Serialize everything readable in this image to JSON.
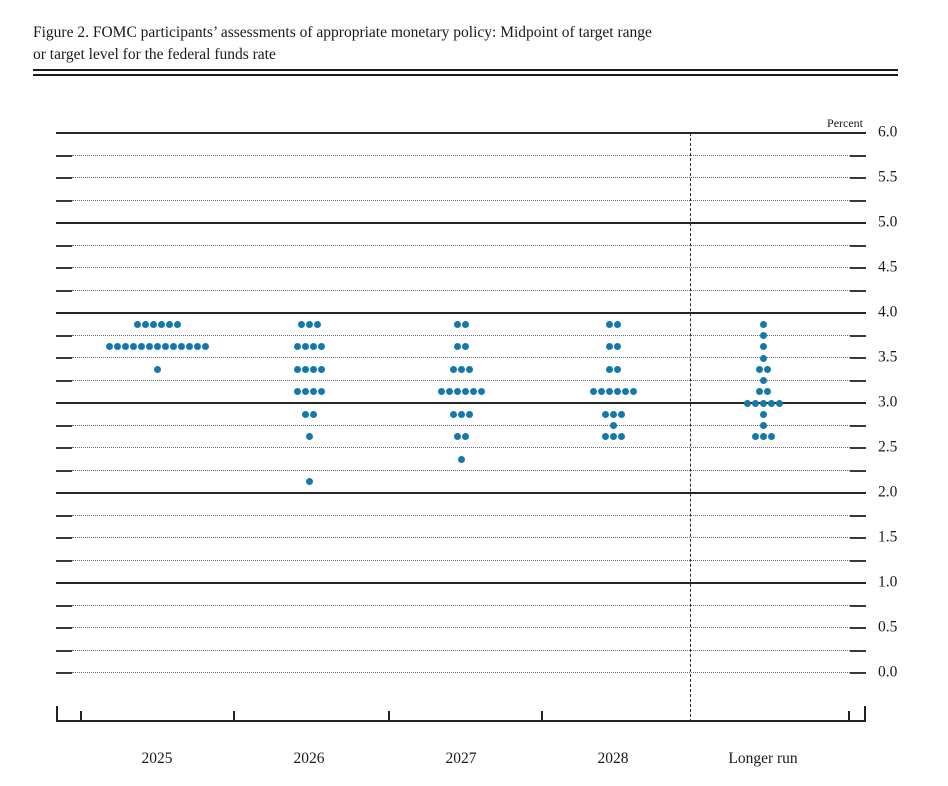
{
  "header": {
    "line1": "Figure 2. FOMC participants’ assessments of appropriate monetary policy: Midpoint of target range",
    "line2": "or target level for the federal funds rate"
  },
  "chart_data": {
    "type": "scatter",
    "title": "FOMC participants’ assessments of appropriate monetary policy: Midpoint of target range or target level for the federal funds rate",
    "percent_label": "Percent",
    "ylabel": "Percent",
    "ylim": [
      0.0,
      6.0
    ],
    "y_tick_step": 0.25,
    "y_label_step": 0.5,
    "y_axis_labels": [
      "6.0",
      "5.5",
      "5.0",
      "4.5",
      "4.0",
      "3.5",
      "3.0",
      "2.5",
      "2.0",
      "1.5",
      "1.0",
      "0.5",
      "0.0"
    ],
    "solid_gridlines": [
      6.0,
      5.0,
      4.0,
      3.0,
      2.0,
      1.0
    ],
    "grid": "dotted-quarters",
    "legend": "none",
    "dot_color": "#1578aa",
    "categories": [
      "2025",
      "2026",
      "2027",
      "2028",
      "Longer run"
    ],
    "series": [
      {
        "name": "2025",
        "dots": [
          {
            "rate": 3.875,
            "count": 6
          },
          {
            "rate": 3.625,
            "count": 13
          },
          {
            "rate": 3.375,
            "count": 1
          }
        ]
      },
      {
        "name": "2026",
        "dots": [
          {
            "rate": 3.875,
            "count": 3
          },
          {
            "rate": 3.625,
            "count": 4
          },
          {
            "rate": 3.375,
            "count": 4
          },
          {
            "rate": 3.125,
            "count": 4
          },
          {
            "rate": 2.875,
            "count": 2
          },
          {
            "rate": 2.625,
            "count": 1
          },
          {
            "rate": 2.125,
            "count": 1
          }
        ]
      },
      {
        "name": "2027",
        "dots": [
          {
            "rate": 3.875,
            "count": 2
          },
          {
            "rate": 3.625,
            "count": 2
          },
          {
            "rate": 3.375,
            "count": 3
          },
          {
            "rate": 3.125,
            "count": 6
          },
          {
            "rate": 2.875,
            "count": 3
          },
          {
            "rate": 2.625,
            "count": 2
          },
          {
            "rate": 2.375,
            "count": 1
          }
        ]
      },
      {
        "name": "2028",
        "dots": [
          {
            "rate": 3.875,
            "count": 2
          },
          {
            "rate": 3.625,
            "count": 2
          },
          {
            "rate": 3.375,
            "count": 2
          },
          {
            "rate": 3.125,
            "count": 6
          },
          {
            "rate": 2.875,
            "count": 3
          },
          {
            "rate": 2.75,
            "count": 1
          },
          {
            "rate": 2.625,
            "count": 3
          }
        ]
      },
      {
        "name": "Longer run",
        "dots": [
          {
            "rate": 3.875,
            "count": 1
          },
          {
            "rate": 3.75,
            "count": 1
          },
          {
            "rate": 3.625,
            "count": 1
          },
          {
            "rate": 3.5,
            "count": 1
          },
          {
            "rate": 3.375,
            "count": 2
          },
          {
            "rate": 3.25,
            "count": 1
          },
          {
            "rate": 3.125,
            "count": 2
          },
          {
            "rate": 3.0,
            "count": 5
          },
          {
            "rate": 2.875,
            "count": 1
          },
          {
            "rate": 2.75,
            "count": 1
          },
          {
            "rate": 2.625,
            "count": 3
          }
        ]
      }
    ]
  }
}
